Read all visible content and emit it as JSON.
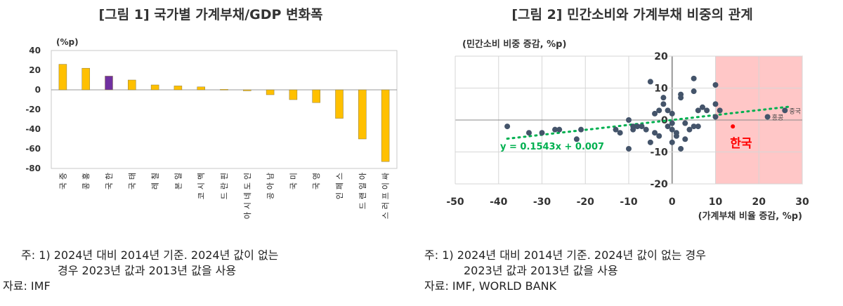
{
  "figure1": {
    "title": "[그림 1] 국가별 가계부채/GDP 변화폭",
    "unit": "(%p)",
    "notes": [
      "주: 1) 2024년 대비 2014년 기준. 2024년 값이 없는",
      "경우 2023년 값과 2013년 값을 사용",
      "자료: IMF"
    ]
  },
  "figure2": {
    "title": "[그림 2] 민간소비와 가계부채 비중의 관계",
    "ylabel": "(민간소비 비중 증감, %p)",
    "xlabel": "(가계부채 비율 증감, %p)",
    "equation": "y = 0.1543x + 0.007",
    "highlight_label": "한국",
    "label_china": "중국",
    "label_hongkong": "홍콩",
    "notes": [
      "주: 1) 2024년 대비 2014년 기준. 2024년 값이 없는 경우",
      "2023년 값과 2013년 값을 사용",
      "자료: IMF, WORLD BANK"
    ]
  },
  "colors": {
    "bar": "#FFC000",
    "korea_bar": "#7030A0",
    "scatter": "#44546A",
    "trend": "#00B050",
    "shade": "#FFC7C7",
    "korea_point": "#FF0000"
  },
  "chart_data": [
    {
      "type": "bar",
      "title": "[그림 1] 국가별 가계부채/GDP 변화폭",
      "ylabel": "(%p)",
      "ylim": [
        -80,
        40
      ],
      "yticks": [
        40,
        20,
        0,
        -20,
        -40,
        -60,
        -80
      ],
      "categories": [
        "중국",
        "홍콩",
        "한국",
        "태국",
        "칠레",
        "일본",
        "멕시코",
        "핀란드",
        "인도네시아",
        "남아공",
        "미국",
        "영국",
        "스페인",
        "아일랜드",
        "싸이프러스"
      ],
      "values": [
        26,
        22,
        14,
        10,
        5,
        4,
        3,
        0.5,
        -1,
        -5,
        -10,
        -13,
        -29,
        -50,
        -73
      ],
      "grid": false
    },
    {
      "type": "scatter",
      "title": "[그림 2] 민간소비와 가계부채 비중의 관계",
      "xlabel": "(가계부채 비율 증감, %p)",
      "ylabel": "(민간소비 비중 증감, %p)",
      "xlim": [
        -50,
        30
      ],
      "ylim": [
        -20,
        20
      ],
      "xticks": [
        -50,
        -40,
        -30,
        -20,
        -10,
        0,
        10,
        20,
        30
      ],
      "yticks": [
        20,
        10,
        0,
        -10,
        -20
      ],
      "trendline": {
        "slope": 0.1543,
        "intercept": 0.007
      },
      "shaded_region": {
        "x": [
          10,
          30
        ]
      },
      "points": [
        [
          -38,
          -2
        ],
        [
          -33,
          -4
        ],
        [
          -30,
          -4
        ],
        [
          -27,
          -3
        ],
        [
          -26,
          -3
        ],
        [
          -22,
          -6
        ],
        [
          -21,
          -3
        ],
        [
          -13,
          -3
        ],
        [
          -12,
          -4
        ],
        [
          -10,
          -9
        ],
        [
          -10,
          0
        ],
        [
          -9,
          -2
        ],
        [
          -9,
          -3
        ],
        [
          -8,
          -2
        ],
        [
          -7,
          -2
        ],
        [
          -6,
          -3
        ],
        [
          -5,
          12
        ],
        [
          -5,
          -7
        ],
        [
          -4,
          2
        ],
        [
          -4,
          -4
        ],
        [
          -3,
          -5
        ],
        [
          -3,
          3
        ],
        [
          -2,
          7
        ],
        [
          -2,
          5
        ],
        [
          -1,
          3
        ],
        [
          -1,
          -2
        ],
        [
          0,
          2
        ],
        [
          0,
          -3
        ],
        [
          0,
          -7
        ],
        [
          0,
          -1
        ],
        [
          1,
          -4
        ],
        [
          1,
          -5
        ],
        [
          2,
          8
        ],
        [
          2,
          7
        ],
        [
          2,
          -9
        ],
        [
          3,
          -6
        ],
        [
          3,
          -1
        ],
        [
          4,
          -3
        ],
        [
          5,
          -2
        ],
        [
          5,
          13
        ],
        [
          5,
          9
        ],
        [
          6,
          3
        ],
        [
          6,
          -2
        ],
        [
          7,
          4
        ],
        [
          8,
          3
        ],
        [
          10,
          11
        ],
        [
          10,
          5
        ],
        [
          10,
          1
        ],
        [
          11,
          3
        ],
        [
          22,
          1
        ],
        [
          26,
          3
        ]
      ],
      "highlight_points": [
        {
          "label": "한국",
          "x": 14,
          "y": -2
        },
        {
          "label": "중국",
          "x": 26,
          "y": 3
        },
        {
          "label": "홍콩",
          "x": 22,
          "y": 1
        }
      ]
    }
  ]
}
